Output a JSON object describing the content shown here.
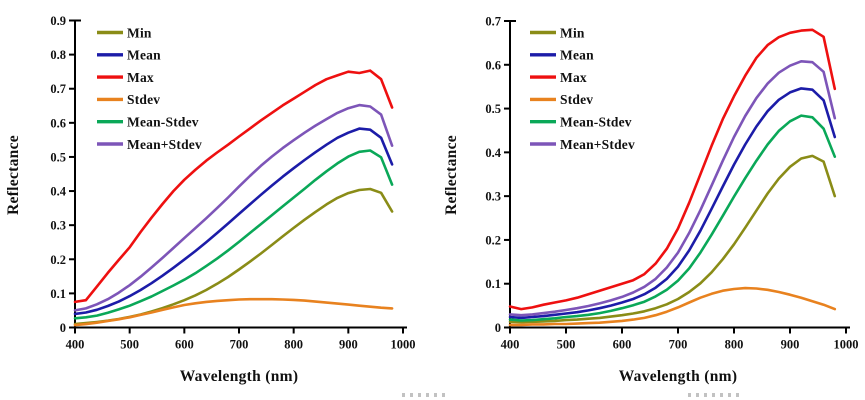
{
  "figure": {
    "background": "#ffffff"
  },
  "chart_data": [
    {
      "type": "line",
      "panel": "left",
      "title": "",
      "xlabel": "Wavelength (nm)",
      "ylabel": "Reflectance",
      "xlim": [
        400,
        1000
      ],
      "ylim": [
        0,
        0.9
      ],
      "x_ticks": [
        400,
        500,
        600,
        700,
        800,
        900,
        1000
      ],
      "y_ticks": [
        0,
        0.1,
        0.2,
        0.3,
        0.4,
        0.5,
        0.6,
        0.7,
        0.8,
        0.9
      ],
      "grid": false,
      "legend_position": "upper-left",
      "x": [
        400,
        420,
        440,
        460,
        480,
        500,
        520,
        540,
        560,
        580,
        600,
        620,
        640,
        660,
        680,
        700,
        720,
        740,
        760,
        780,
        800,
        820,
        840,
        860,
        880,
        900,
        920,
        940,
        960,
        980
      ],
      "series": [
        {
          "name": "Min",
          "color": "#8a8c17",
          "values": [
            0.01,
            0.013,
            0.016,
            0.02,
            0.025,
            0.031,
            0.038,
            0.047,
            0.057,
            0.068,
            0.08,
            0.094,
            0.11,
            0.128,
            0.148,
            0.17,
            0.193,
            0.217,
            0.242,
            0.267,
            0.292,
            0.316,
            0.339,
            0.361,
            0.38,
            0.394,
            0.403,
            0.406,
            0.395,
            0.34
          ]
        },
        {
          "name": "Mean",
          "color": "#1c1ca8",
          "values": [
            0.04,
            0.044,
            0.052,
            0.063,
            0.076,
            0.092,
            0.11,
            0.13,
            0.152,
            0.175,
            0.199,
            0.224,
            0.25,
            0.277,
            0.305,
            0.333,
            0.361,
            0.389,
            0.416,
            0.442,
            0.467,
            0.491,
            0.514,
            0.536,
            0.556,
            0.571,
            0.583,
            0.58,
            0.556,
            0.478
          ]
        },
        {
          "name": "Max",
          "color": "#ee1010",
          "values": [
            0.075,
            0.08,
            0.12,
            0.16,
            0.198,
            0.235,
            0.28,
            0.322,
            0.362,
            0.4,
            0.433,
            0.462,
            0.489,
            0.513,
            0.536,
            0.56,
            0.583,
            0.607,
            0.629,
            0.651,
            0.671,
            0.691,
            0.711,
            0.728,
            0.739,
            0.75,
            0.746,
            0.753,
            0.728,
            0.645
          ]
        },
        {
          "name": "Stdev",
          "color": "#e8821f",
          "values": [
            0.007,
            0.01,
            0.014,
            0.019,
            0.024,
            0.03,
            0.037,
            0.044,
            0.052,
            0.059,
            0.066,
            0.071,
            0.075,
            0.078,
            0.08,
            0.082,
            0.083,
            0.083,
            0.083,
            0.082,
            0.081,
            0.079,
            0.076,
            0.073,
            0.07,
            0.067,
            0.064,
            0.061,
            0.058,
            0.056
          ]
        },
        {
          "name": "Mean-Stdev",
          "color": "#0aa858",
          "values": [
            0.027,
            0.03,
            0.035,
            0.043,
            0.053,
            0.064,
            0.077,
            0.091,
            0.107,
            0.123,
            0.14,
            0.159,
            0.18,
            0.202,
            0.226,
            0.251,
            0.277,
            0.303,
            0.329,
            0.355,
            0.381,
            0.407,
            0.433,
            0.458,
            0.481,
            0.501,
            0.515,
            0.519,
            0.499,
            0.419
          ]
        },
        {
          "name": "Mean+Stdev",
          "color": "#7d55b8",
          "values": [
            0.05,
            0.056,
            0.068,
            0.083,
            0.102,
            0.124,
            0.149,
            0.176,
            0.204,
            0.233,
            0.262,
            0.291,
            0.32,
            0.35,
            0.381,
            0.413,
            0.444,
            0.474,
            0.501,
            0.526,
            0.549,
            0.571,
            0.592,
            0.611,
            0.629,
            0.643,
            0.652,
            0.648,
            0.624,
            0.533
          ]
        }
      ]
    },
    {
      "type": "line",
      "panel": "right",
      "title": "",
      "xlabel": "Wavelength (nm)",
      "ylabel": "Reflectance",
      "xlim": [
        400,
        1000
      ],
      "ylim": [
        0,
        0.7
      ],
      "x_ticks": [
        400,
        500,
        600,
        700,
        800,
        900,
        1000
      ],
      "y_ticks": [
        0,
        0.1,
        0.2,
        0.3,
        0.4,
        0.5,
        0.6,
        0.7
      ],
      "grid": false,
      "legend_position": "upper-left",
      "x": [
        400,
        420,
        440,
        460,
        480,
        500,
        520,
        540,
        560,
        580,
        600,
        620,
        640,
        660,
        680,
        700,
        720,
        740,
        760,
        780,
        800,
        820,
        840,
        860,
        880,
        900,
        920,
        940,
        960,
        980
      ],
      "series": [
        {
          "name": "Min",
          "color": "#8a8c17",
          "values": [
            0.013,
            0.012,
            0.013,
            0.014,
            0.015,
            0.017,
            0.018,
            0.02,
            0.022,
            0.025,
            0.028,
            0.032,
            0.037,
            0.044,
            0.053,
            0.065,
            0.081,
            0.101,
            0.126,
            0.156,
            0.19,
            0.228,
            0.267,
            0.306,
            0.34,
            0.367,
            0.386,
            0.392,
            0.379,
            0.3
          ]
        },
        {
          "name": "Mean",
          "color": "#1c1ca8",
          "values": [
            0.024,
            0.022,
            0.024,
            0.026,
            0.029,
            0.032,
            0.035,
            0.039,
            0.044,
            0.05,
            0.057,
            0.065,
            0.076,
            0.091,
            0.111,
            0.139,
            0.176,
            0.221,
            0.271,
            0.322,
            0.372,
            0.418,
            0.459,
            0.494,
            0.52,
            0.537,
            0.546,
            0.543,
            0.519,
            0.435
          ]
        },
        {
          "name": "Max",
          "color": "#ee1010",
          "values": [
            0.048,
            0.042,
            0.046,
            0.052,
            0.057,
            0.062,
            0.068,
            0.076,
            0.084,
            0.092,
            0.1,
            0.108,
            0.122,
            0.146,
            0.18,
            0.226,
            0.285,
            0.35,
            0.415,
            0.476,
            0.528,
            0.575,
            0.616,
            0.645,
            0.663,
            0.673,
            0.678,
            0.68,
            0.664,
            0.545
          ]
        },
        {
          "name": "Stdev",
          "color": "#e8821f",
          "values": [
            0.006,
            0.006,
            0.007,
            0.007,
            0.008,
            0.008,
            0.009,
            0.01,
            0.011,
            0.013,
            0.015,
            0.018,
            0.022,
            0.028,
            0.036,
            0.046,
            0.057,
            0.068,
            0.077,
            0.084,
            0.088,
            0.09,
            0.089,
            0.086,
            0.081,
            0.075,
            0.068,
            0.06,
            0.052,
            0.042
          ]
        },
        {
          "name": "Mean-Stdev",
          "color": "#0aa858",
          "values": [
            0.018,
            0.016,
            0.017,
            0.019,
            0.021,
            0.024,
            0.026,
            0.029,
            0.033,
            0.038,
            0.044,
            0.051,
            0.059,
            0.071,
            0.086,
            0.107,
            0.135,
            0.171,
            0.212,
            0.255,
            0.299,
            0.341,
            0.381,
            0.418,
            0.449,
            0.471,
            0.484,
            0.48,
            0.454,
            0.39
          ]
        },
        {
          "name": "Mean+Stdev",
          "color": "#7d55b8",
          "values": [
            0.03,
            0.028,
            0.03,
            0.033,
            0.036,
            0.04,
            0.044,
            0.049,
            0.055,
            0.062,
            0.07,
            0.08,
            0.093,
            0.111,
            0.137,
            0.171,
            0.216,
            0.268,
            0.324,
            0.381,
            0.435,
            0.483,
            0.524,
            0.557,
            0.582,
            0.598,
            0.608,
            0.606,
            0.584,
            0.478
          ]
        }
      ]
    }
  ]
}
